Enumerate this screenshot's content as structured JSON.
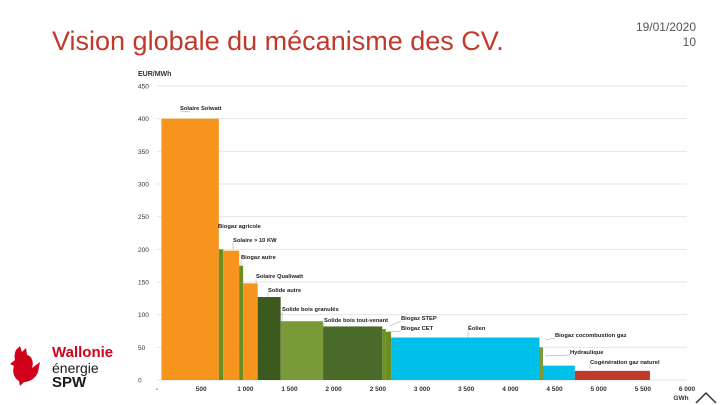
{
  "slide": {
    "title": "Vision globale du mécanisme des CV.",
    "date": "19/01/2020",
    "page_number": "10"
  },
  "logo": {
    "line1": "Wallonie",
    "line2": "énergie",
    "line3": "SPW",
    "color_red": "#d0021b",
    "color_dark": "#1a1a1a"
  },
  "chart_data": {
    "type": "bar",
    "ylabel": "EUR/MWh",
    "xlabel": "GWh",
    "xlim": [
      0,
      6000
    ],
    "ylim": [
      0,
      450
    ],
    "x_ticks": [
      "-",
      "500",
      "1 000",
      "1 500",
      "2 000",
      "2 500",
      "3 000",
      "3 500",
      "4 000",
      "4 500",
      "5 000",
      "5 500",
      "6 000"
    ],
    "y_ticks": [
      "0",
      "50",
      "100",
      "150",
      "200",
      "250",
      "300",
      "350",
      "400",
      "450"
    ],
    "grid": true,
    "segments": [
      {
        "label": "Solaire Solwatt",
        "x_start": 50,
        "x_end": 700,
        "value": 400,
        "color": "#f7941d"
      },
      {
        "label": "Biogaz agricole",
        "x_start": 700,
        "x_end": 750,
        "value": 200,
        "color": "#6b8e23"
      },
      {
        "label": "Solaire > 10 KW",
        "x_start": 750,
        "x_end": 930,
        "value": 198,
        "color": "#f7941d"
      },
      {
        "label": "Biogaz autre",
        "x_start": 930,
        "x_end": 975,
        "value": 175,
        "color": "#6b8e23"
      },
      {
        "label": "Solaire Qualiwatt",
        "x_start": 975,
        "x_end": 1140,
        "value": 148,
        "color": "#f7941d"
      },
      {
        "label": "Solide autre",
        "x_start": 1140,
        "x_end": 1400,
        "value": 127,
        "color": "#3d5a1e"
      },
      {
        "label": "Solide bois granulés",
        "x_start": 1400,
        "x_end": 1880,
        "value": 90,
        "color": "#7a9a3a"
      },
      {
        "label": "Solide bois tout-venant",
        "x_start": 1880,
        "x_end": 2550,
        "value": 82,
        "color": "#4a6a2a"
      },
      {
        "label": "Biogaz STEP",
        "x_start": 2550,
        "x_end": 2590,
        "value": 78,
        "color": "#6b8e23"
      },
      {
        "label": "Biogaz CET",
        "x_start": 2590,
        "x_end": 2650,
        "value": 74,
        "color": "#6b8e23"
      },
      {
        "label": "Éolien",
        "x_start": 2650,
        "x_end": 4330,
        "value": 65,
        "color": "#00bfe8"
      },
      {
        "label": "Biogaz cocombustion gaz",
        "x_start": 4330,
        "x_end": 4370,
        "value": 50,
        "color": "#7a9a3a"
      },
      {
        "label": "Hydraulique",
        "x_start": 4370,
        "x_end": 4730,
        "value": 22,
        "color": "#00bfe8"
      },
      {
        "label": "Cogénération gaz naturel",
        "x_start": 4730,
        "x_end": 5580,
        "value": 14,
        "color": "#c0392b"
      }
    ]
  }
}
